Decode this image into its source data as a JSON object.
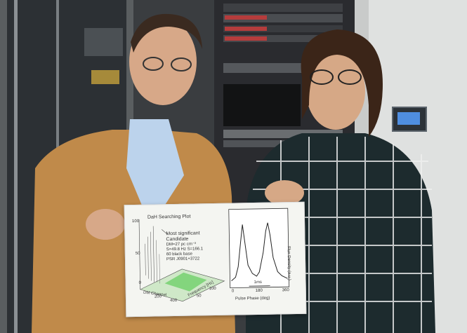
{
  "poster": {
    "title": "DaH Searching Plot",
    "annotation": {
      "headline": "Most significant Candidate",
      "line1": "DM=27 pc cm⁻³",
      "line2": "S=49.8 Hz S=166.1",
      "line3": "60 black base",
      "line4": "PSR J0901+3722"
    },
    "axes": {
      "dm_label": "DM Channel",
      "period_label": "Frequency [Hz]",
      "phase_label": "Pulse Phase (deg)",
      "flux_label": "Flux Density (a.u.)",
      "phase_ticks": [
        "0",
        "180",
        "360"
      ],
      "left_ticks": [
        "100",
        "50",
        "0"
      ],
      "dm_ticks": [
        "200",
        "400"
      ],
      "period_ticks": [
        "50",
        "100"
      ]
    },
    "profile_scale_label": "1ms"
  },
  "colors": {
    "jacket": "#c08a4a",
    "shirt_blue": "#bcd3ec",
    "plaid_dark": "#1d2b2e",
    "rack": "#2a2b2f",
    "display": "#4f8ee0"
  },
  "icons": {
    "display": "wall-thermostat-icon"
  }
}
